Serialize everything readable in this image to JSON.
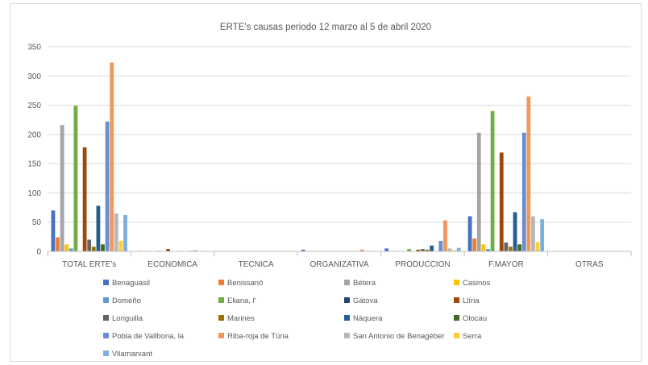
{
  "chart_data": {
    "type": "bar",
    "title": "ERTE's causas periodo 12 marzo al 5 de abril 2020",
    "xlabel": "",
    "ylabel": "",
    "ylim": [
      0,
      350
    ],
    "yticks": [
      0,
      50,
      100,
      150,
      200,
      250,
      300,
      350
    ],
    "grid": true,
    "legend_position": "bottom",
    "categories": [
      "TOTAL ERTE's",
      "ECONOMICA",
      "TECNICA",
      "ORGANIZATIVA",
      "PRODUCCION",
      "F.MAYOR",
      "OTRAS"
    ],
    "series": [
      {
        "name": "Benaguasil",
        "color": "#4472c4",
        "values": [
          70,
          0,
          0,
          3,
          5,
          60,
          0
        ]
      },
      {
        "name": "Benissanó",
        "color": "#ed7d31",
        "values": [
          24,
          1,
          0,
          0,
          0,
          22,
          0
        ]
      },
      {
        "name": "Bétera",
        "color": "#a5a5a5",
        "values": [
          216,
          0,
          0,
          0,
          0,
          203,
          0
        ]
      },
      {
        "name": "Casinos",
        "color": "#ffc000",
        "values": [
          12,
          0,
          0,
          0,
          0,
          12,
          0
        ]
      },
      {
        "name": "Domeño",
        "color": "#5b9bd5",
        "values": [
          5,
          0,
          0,
          0,
          0,
          4,
          0
        ]
      },
      {
        "name": "Eliana, l'",
        "color": "#70ad47",
        "values": [
          249,
          1,
          0,
          0,
          4,
          240,
          0
        ]
      },
      {
        "name": "Gátova",
        "color": "#264478",
        "values": [
          0,
          0,
          0,
          0,
          0,
          0,
          0
        ]
      },
      {
        "name": "Llíria",
        "color": "#9e480e",
        "values": [
          178,
          4,
          0,
          0,
          3,
          169,
          0
        ]
      },
      {
        "name": "Loriguilla",
        "color": "#636363",
        "values": [
          20,
          0,
          0,
          0,
          4,
          15,
          0
        ]
      },
      {
        "name": "Marines",
        "color": "#997300",
        "values": [
          8,
          0,
          0,
          0,
          3,
          8,
          0
        ]
      },
      {
        "name": "Nàquera",
        "color": "#255e91",
        "values": [
          78,
          0,
          0,
          0,
          10,
          67,
          0
        ]
      },
      {
        "name": "Olocau",
        "color": "#43682b",
        "values": [
          12,
          0,
          0,
          0,
          0,
          12,
          0
        ]
      },
      {
        "name": "Pobla de Vallbona, la",
        "color": "#698ed0",
        "values": [
          222,
          1,
          0,
          0,
          18,
          203,
          0
        ]
      },
      {
        "name": "Riba-roja de Túria",
        "color": "#f1975a",
        "values": [
          323,
          2,
          0,
          3,
          53,
          265,
          0
        ]
      },
      {
        "name": "San Antonio de Benagéber",
        "color": "#b7b7b7",
        "values": [
          65,
          0,
          0,
          0,
          5,
          60,
          0
        ]
      },
      {
        "name": "Serra",
        "color": "#ffcd33",
        "values": [
          18,
          0,
          0,
          0,
          2,
          16,
          0
        ]
      },
      {
        "name": "Vilamarxant",
        "color": "#7cafdd",
        "values": [
          62,
          0,
          0,
          0,
          6,
          55,
          0
        ]
      }
    ]
  }
}
